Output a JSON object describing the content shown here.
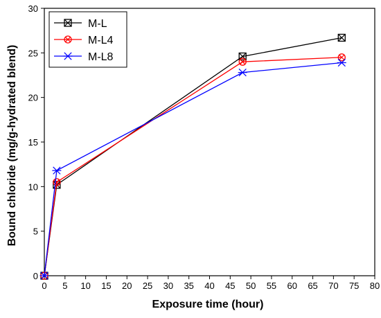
{
  "chart_data": {
    "type": "line",
    "title": "",
    "xlabel": "Exposure time (hour)",
    "ylabel": "Bound chloride (mg/g-hydrated blend)",
    "xlim": [
      0,
      80
    ],
    "ylim": [
      0,
      30
    ],
    "xticks": [
      0,
      5,
      10,
      15,
      20,
      25,
      30,
      35,
      40,
      45,
      50,
      55,
      60,
      65,
      70,
      75,
      80
    ],
    "yticks": [
      0,
      5,
      10,
      15,
      20,
      25,
      30
    ],
    "grid": false,
    "legend_position": "top-left",
    "series": [
      {
        "name": "M-L",
        "color": "#000000",
        "marker": "square-x",
        "x": [
          0,
          3,
          48,
          72
        ],
        "y": [
          0,
          10.2,
          24.6,
          26.7
        ]
      },
      {
        "name": "M-L4",
        "color": "#ff0000",
        "marker": "circle-x",
        "x": [
          0,
          3,
          48,
          72
        ],
        "y": [
          0,
          10.5,
          24.0,
          24.5
        ]
      },
      {
        "name": "M-L8",
        "color": "#0000ff",
        "marker": "star",
        "x": [
          0,
          3,
          48,
          72
        ],
        "y": [
          0,
          11.8,
          22.8,
          23.9
        ]
      }
    ]
  }
}
